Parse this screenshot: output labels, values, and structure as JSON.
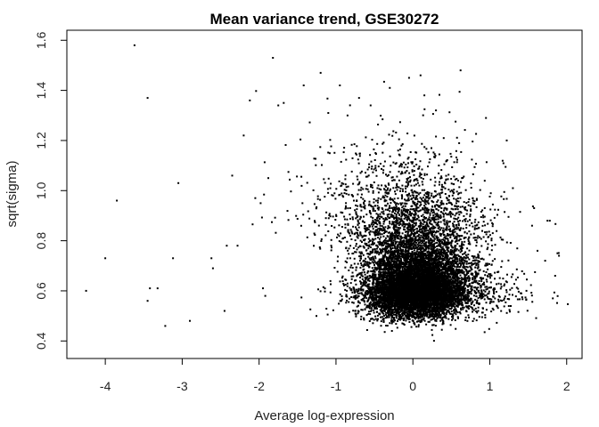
{
  "chart_data": {
    "type": "scatter",
    "title": "Mean variance trend, GSE30272",
    "xlabel": "Average log-expression",
    "ylabel": "sqrt(sigma)",
    "xlim": [
      -4.5,
      2.2
    ],
    "ylim": [
      0.33,
      1.64
    ],
    "xticks": [
      -4,
      -3,
      -2,
      -1,
      0,
      1,
      2
    ],
    "xtick_labels": [
      "-4",
      "-3",
      "-2",
      "-1",
      "0",
      "1",
      "2"
    ],
    "yticks": [
      0.4,
      0.6,
      0.8,
      1.0,
      1.2,
      1.4,
      1.6
    ],
    "ytick_labels": [
      "0.4",
      "0.6",
      "0.8",
      "1.0",
      "1.2",
      "1.4",
      "1.6"
    ],
    "grid": false,
    "legend": "none",
    "point_color": "#000000",
    "outliers": [
      {
        "x": -4.25,
        "y": 0.6
      },
      {
        "x": -4.0,
        "y": 0.73
      },
      {
        "x": -3.85,
        "y": 0.96
      },
      {
        "x": -3.62,
        "y": 1.58
      },
      {
        "x": -3.45,
        "y": 1.37
      },
      {
        "x": -3.45,
        "y": 0.56
      },
      {
        "x": -3.42,
        "y": 0.61
      },
      {
        "x": -3.32,
        "y": 0.61
      },
      {
        "x": -3.22,
        "y": 0.46
      },
      {
        "x": -3.12,
        "y": 0.73
      },
      {
        "x": -3.05,
        "y": 1.03
      },
      {
        "x": -2.9,
        "y": 0.48
      },
      {
        "x": -2.62,
        "y": 0.73
      },
      {
        "x": -2.6,
        "y": 0.69
      },
      {
        "x": -2.45,
        "y": 0.52
      },
      {
        "x": -2.42,
        "y": 0.78
      },
      {
        "x": -2.35,
        "y": 1.06
      },
      {
        "x": -2.28,
        "y": 0.78
      },
      {
        "x": -2.2,
        "y": 1.22
      },
      {
        "x": -2.12,
        "y": 1.36
      },
      {
        "x": -2.05,
        "y": 0.97
      },
      {
        "x": -1.98,
        "y": 0.95
      },
      {
        "x": -1.95,
        "y": 0.61
      },
      {
        "x": -1.92,
        "y": 0.58
      },
      {
        "x": -1.88,
        "y": 1.05
      },
      {
        "x": -1.82,
        "y": 1.53
      },
      {
        "x": -1.75,
        "y": 1.34
      },
      {
        "x": -1.68,
        "y": 1.35
      },
      {
        "x": -1.42,
        "y": 1.42
      },
      {
        "x": -1.2,
        "y": 1.47
      },
      {
        "x": -1.1,
        "y": 1.31
      },
      {
        "x": -0.95,
        "y": 1.42
      },
      {
        "x": -0.85,
        "y": 1.3
      },
      {
        "x": -0.7,
        "y": 1.37
      },
      {
        "x": -0.55,
        "y": 1.34
      },
      {
        "x": -0.3,
        "y": 1.41
      },
      {
        "x": -0.05,
        "y": 1.45
      },
      {
        "x": 0.1,
        "y": 1.46
      },
      {
        "x": 0.15,
        "y": 1.38
      },
      {
        "x": 0.3,
        "y": 1.32
      },
      {
        "x": 0.62,
        "y": 1.48
      },
      {
        "x": 0.95,
        "y": 1.29
      },
      {
        "x": 1.22,
        "y": 1.2
      },
      {
        "x": 1.3,
        "y": 1.01
      },
      {
        "x": 1.55,
        "y": 0.86
      },
      {
        "x": 1.62,
        "y": 0.76
      },
      {
        "x": 1.72,
        "y": 0.72
      },
      {
        "x": 1.75,
        "y": 0.88
      },
      {
        "x": 1.78,
        "y": 0.88
      },
      {
        "x": 1.82,
        "y": 0.57
      },
      {
        "x": 1.88,
        "y": 0.75
      },
      {
        "x": 1.85,
        "y": 0.66
      },
      {
        "x": 1.9,
        "y": 0.74
      }
    ],
    "clusters": [
      {
        "cx": 0.05,
        "cy": 0.56,
        "sx": 0.32,
        "sy": 0.085,
        "n": 6500
      },
      {
        "cx": 0.1,
        "cy": 0.7,
        "sx": 0.42,
        "sy": 0.16,
        "n": 2600
      },
      {
        "cx": -0.3,
        "cy": 0.85,
        "sx": 0.6,
        "sy": 0.18,
        "n": 700
      },
      {
        "cx": 0.3,
        "cy": 0.55,
        "sx": 0.55,
        "sy": 0.09,
        "n": 900
      }
    ],
    "point_cloud_seed": 30272
  }
}
